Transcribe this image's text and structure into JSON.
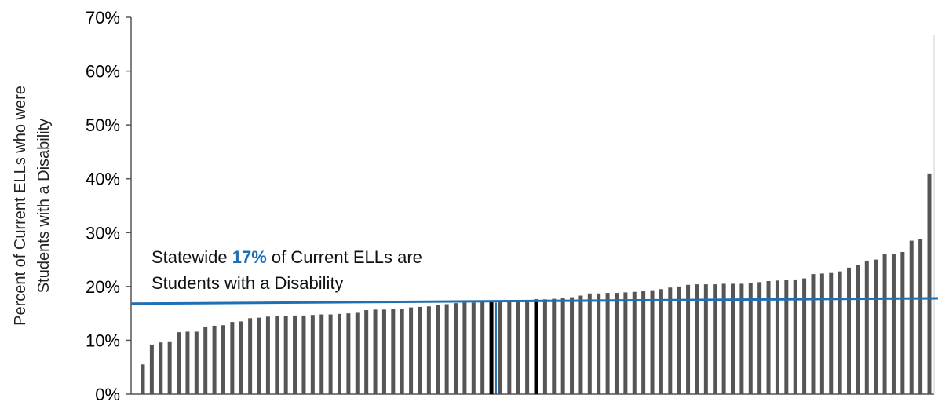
{
  "chart_data": {
    "type": "bar",
    "title": "",
    "xlabel": "",
    "ylabel_line1": "Percent of Current ELLs who were",
    "ylabel_line2": "Students with a Disability",
    "ylim": [
      0,
      0.7
    ],
    "yticks": [
      {
        "value": 0.0,
        "label": "0%"
      },
      {
        "value": 0.1,
        "label": "10%"
      },
      {
        "value": 0.2,
        "label": "20%"
      },
      {
        "value": 0.3,
        "label": "30%"
      },
      {
        "value": 0.4,
        "label": "40%"
      },
      {
        "value": 0.5,
        "label": "50%"
      },
      {
        "value": 0.6,
        "label": "60%"
      },
      {
        "value": 0.7,
        "label": "70%"
      }
    ],
    "grid": false,
    "legend": "none",
    "bar_color": "#555555",
    "highlight_color": "#000000",
    "statewide_color": "#1f6fb5",
    "statewide_value": 0.17,
    "statewide_line": {
      "start": 0.168,
      "end": 0.178
    },
    "annotation": {
      "line1_pre": "Statewide ",
      "line1_highlight": "17%",
      "line1_post": " of Current ELLs are",
      "line2": "Students with a Disability"
    },
    "values": [
      0.055,
      0.092,
      0.096,
      0.098,
      0.115,
      0.116,
      0.116,
      0.124,
      0.127,
      0.128,
      0.134,
      0.135,
      0.141,
      0.142,
      0.144,
      0.145,
      0.145,
      0.146,
      0.146,
      0.147,
      0.148,
      0.148,
      0.149,
      0.15,
      0.151,
      0.156,
      0.157,
      0.157,
      0.158,
      0.159,
      0.161,
      0.162,
      0.163,
      0.165,
      0.167,
      0.169,
      0.17,
      0.17,
      0.171,
      0.172,
      0.172,
      0.173,
      0.173,
      0.174,
      0.176,
      0.176,
      0.177,
      0.178,
      0.18,
      0.183,
      0.187,
      0.187,
      0.188,
      0.188,
      0.189,
      0.19,
      0.191,
      0.193,
      0.195,
      0.198,
      0.2,
      0.203,
      0.204,
      0.204,
      0.204,
      0.205,
      0.205,
      0.205,
      0.206,
      0.208,
      0.21,
      0.211,
      0.212,
      0.213,
      0.215,
      0.223,
      0.224,
      0.225,
      0.228,
      0.235,
      0.24,
      0.248,
      0.25,
      0.26,
      0.261,
      0.264,
      0.285,
      0.288,
      0.41
    ],
    "highlighted_indices": [
      39,
      44
    ],
    "statewide_marker_index": 40
  }
}
